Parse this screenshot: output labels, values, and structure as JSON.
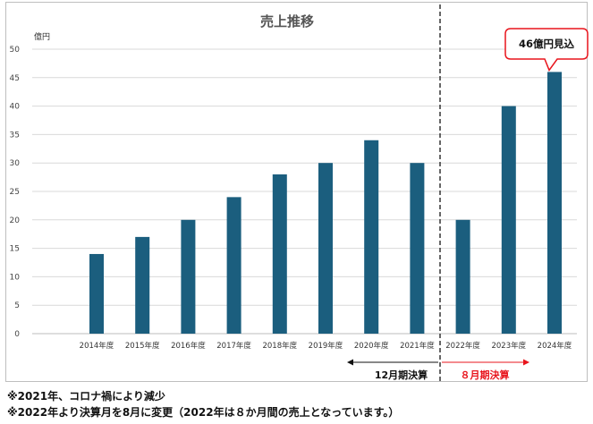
{
  "chart_data": {
    "type": "bar",
    "title": "売上推移",
    "ylabel": "億円",
    "ylim": [
      0,
      50
    ],
    "yticks": [
      0,
      5,
      10,
      15,
      20,
      25,
      30,
      35,
      40,
      45,
      50
    ],
    "grid": true,
    "categories": [
      "2014年度",
      "2015年度",
      "2016年度",
      "2017年度",
      "2018年度",
      "2019年度",
      "2020年度",
      "2021年度",
      "2022年度",
      "2023年度",
      "2024年度"
    ],
    "values": [
      14,
      17,
      20,
      24,
      28,
      30,
      34,
      30,
      20,
      40,
      46
    ],
    "bar_color": "#1b5e7e",
    "annotations": {
      "callout": "46億円見込",
      "callout_color": "#e8141c",
      "left_period": "12月期決算",
      "left_period_color": "#111111",
      "right_period": "８月期決算",
      "right_period_color": "#e8141c"
    }
  },
  "notes": [
    "※2021年、コロナ禍により減少",
    "※2022年より決算月を8月に変更（2022年は８か月間の売上となっています。）"
  ]
}
